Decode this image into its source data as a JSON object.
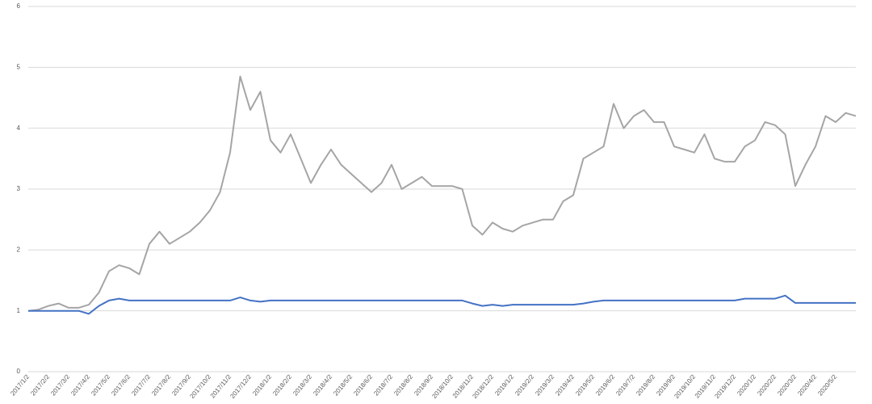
{
  "chart_data": {
    "type": "line",
    "categories": [
      "2017/1/2",
      null,
      "2017/2/2",
      null,
      "2017/3/2",
      null,
      "2017/4/2",
      null,
      "2017/5/2",
      null,
      "2017/6/2",
      null,
      "2017/7/2",
      null,
      "2017/8/2",
      null,
      "2017/9/2",
      null,
      "2017/10/2",
      null,
      "2017/11/2",
      null,
      "2017/12/2",
      null,
      "2018/1/2",
      null,
      "2018/2/2",
      null,
      "2018/3/2",
      null,
      "2018/4/2",
      null,
      "2018/5/2",
      null,
      "2018/6/2",
      null,
      "2018/7/2",
      null,
      "2018/8/2",
      null,
      "2018/9/2",
      null,
      "2018/10/2",
      null,
      "2018/11/2",
      null,
      "2018/12/2",
      null,
      "2019/1/2",
      null,
      "2019/2/2",
      null,
      "2019/3/2",
      null,
      "2019/4/2",
      null,
      "2019/5/2",
      null,
      "2019/6/2",
      null,
      "2019/7/2",
      null,
      "2019/8/2",
      null,
      "2019/9/2",
      null,
      "2019/10/2",
      null,
      "2019/11/2",
      null,
      "2019/12/2",
      null,
      "2020/1/2",
      null,
      "2020/2/2",
      null,
      "2020/3/2",
      null,
      "2020/4/2",
      null,
      "2020/5/2",
      null,
      null
    ],
    "series": [
      {
        "color": "#a5a5a5",
        "values": [
          1.0,
          1.02,
          1.08,
          1.12,
          1.05,
          1.05,
          1.1,
          1.3,
          1.65,
          1.75,
          1.7,
          1.6,
          2.1,
          2.3,
          2.1,
          2.2,
          2.3,
          2.45,
          2.65,
          2.95,
          3.6,
          4.85,
          4.3,
          4.6,
          3.8,
          3.6,
          3.9,
          3.5,
          3.1,
          3.4,
          3.65,
          3.4,
          3.25,
          3.1,
          2.95,
          3.1,
          3.4,
          3.0,
          3.1,
          3.2,
          3.05,
          3.05,
          3.05,
          3.0,
          2.4,
          2.25,
          2.45,
          2.35,
          2.3,
          2.4,
          2.45,
          2.5,
          2.5,
          2.8,
          2.9,
          3.5,
          3.6,
          3.7,
          4.4,
          4.0,
          4.2,
          4.3,
          4.1,
          4.1,
          3.7,
          3.65,
          3.6,
          3.9,
          3.5,
          3.45,
          3.45,
          3.7,
          3.8,
          4.1,
          4.05,
          3.9,
          3.05,
          3.4,
          3.7,
          4.2,
          4.1,
          4.25,
          4.2
        ]
      },
      {
        "color": "#4472c4",
        "values": [
          1.0,
          1.0,
          1.0,
          1.0,
          1.0,
          1.0,
          0.95,
          1.08,
          1.17,
          1.2,
          1.17,
          1.17,
          1.17,
          1.17,
          1.17,
          1.17,
          1.17,
          1.17,
          1.17,
          1.17,
          1.17,
          1.22,
          1.17,
          1.15,
          1.17,
          1.17,
          1.17,
          1.17,
          1.17,
          1.17,
          1.17,
          1.17,
          1.17,
          1.17,
          1.17,
          1.17,
          1.17,
          1.17,
          1.17,
          1.17,
          1.17,
          1.17,
          1.17,
          1.17,
          1.12,
          1.08,
          1.1,
          1.08,
          1.1,
          1.1,
          1.1,
          1.1,
          1.1,
          1.1,
          1.1,
          1.12,
          1.15,
          1.17,
          1.17,
          1.17,
          1.17,
          1.17,
          1.17,
          1.17,
          1.17,
          1.17,
          1.17,
          1.17,
          1.17,
          1.17,
          1.17,
          1.2,
          1.2,
          1.2,
          1.2,
          1.25,
          1.13,
          1.13,
          1.13,
          1.13,
          1.13,
          1.13,
          1.13
        ]
      }
    ],
    "ylim": [
      0,
      6
    ],
    "yticks": [
      0,
      1,
      2,
      3,
      4,
      5,
      6
    ],
    "grid": true
  }
}
